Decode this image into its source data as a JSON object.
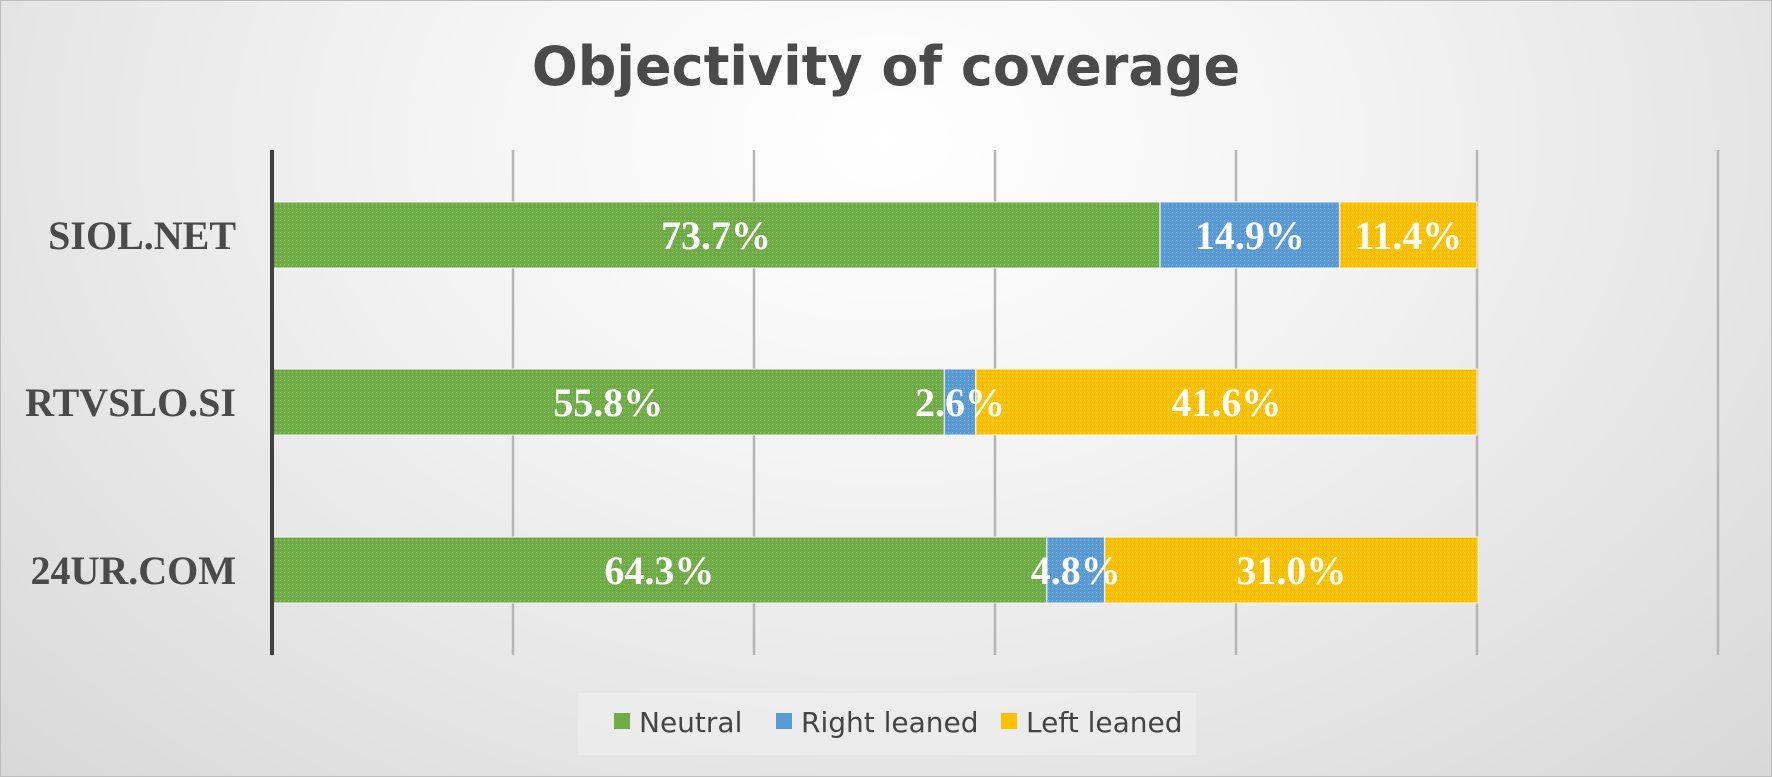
{
  "chart_data": {
    "type": "bar",
    "orientation": "horizontal",
    "stacked": true,
    "title": "Objectivity of coverage",
    "categories": [
      "SIOL.NET",
      "RTVSLO.SI",
      "24UR.COM"
    ],
    "series": [
      {
        "name": "Neutral",
        "color": "#70ad47",
        "values": [
          73.7,
          55.8,
          64.3
        ],
        "labels": [
          "73.7%",
          "55.8%",
          "64.3%"
        ]
      },
      {
        "name": "Right leaned",
        "color": "#5b9bd5",
        "values": [
          14.9,
          2.6,
          4.8
        ],
        "labels": [
          "14.9%",
          "2.6%",
          "4.8%"
        ]
      },
      {
        "name": "Left leaned",
        "color": "#ffc000",
        "values": [
          11.4,
          41.6,
          31.0
        ],
        "labels": [
          "11.4%",
          "41.6%",
          "31.0%"
        ]
      }
    ],
    "xlim": [
      0,
      120
    ],
    "grid": true,
    "legend_position": "bottom",
    "xlabel": "",
    "ylabel": ""
  }
}
